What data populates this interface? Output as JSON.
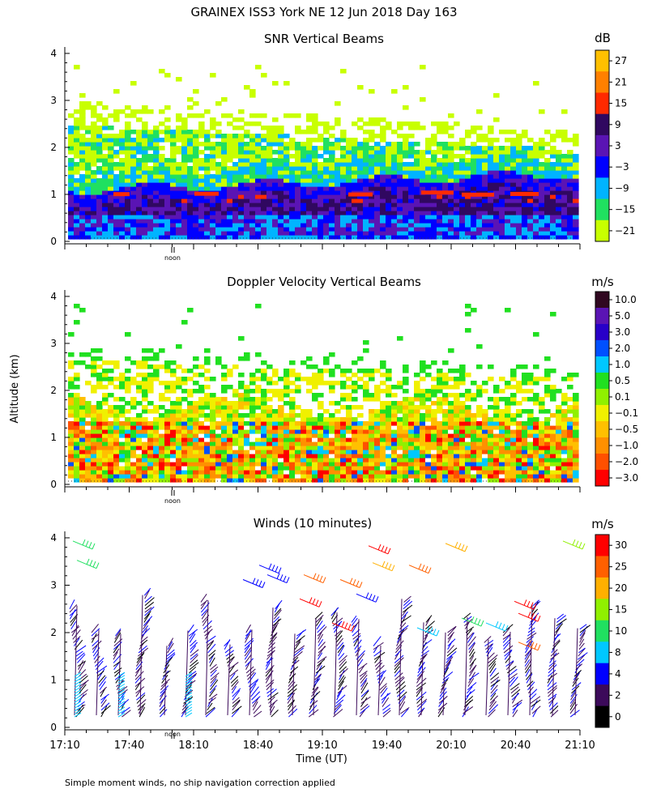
{
  "title": "GRAINEX ISS3 York NE  12 Jun 2018 Day 163",
  "ylabel": "Altitude (km)",
  "xlabel": "Time (UT)",
  "footnote": "Simple moment winds, no ship navigation correction applied",
  "noon_label": "noon",
  "chart_data": [
    {
      "type": "heatmap",
      "title": "SNR Vertical Beams",
      "colorbar_unit": "dB",
      "colorbar_ticks": [
        "27",
        "21",
        "15",
        "9",
        "3",
        "−3",
        "−9",
        "−15",
        "−21"
      ],
      "colorbar_colors": [
        "#ffc000",
        "#ff8000",
        "#ff2a00",
        "#300860",
        "#5a14b4",
        "#0000ff",
        "#00b4ff",
        "#20e060",
        "#c8ff00"
      ],
      "ylim": [
        0,
        4
      ],
      "yticks": [
        "0",
        "1",
        "2",
        "3",
        "4"
      ],
      "xlim": [
        "17:10",
        "21:10"
      ]
    },
    {
      "type": "heatmap",
      "title": "Doppler Velocity Vertical Beams",
      "colorbar_unit": "m/s",
      "colorbar_ticks": [
        "10.0",
        "5.0",
        "3.0",
        "2.0",
        "1.0",
        "0.5",
        "0.1",
        "−0.1",
        "−0.5",
        "−1.0",
        "−2.0",
        "−3.0"
      ],
      "colorbar_colors": [
        "#300820",
        "#5a14b4",
        "#2800c8",
        "#0050ff",
        "#00c8ff",
        "#20e020",
        "#90f000",
        "#f0f000",
        "#ffc000",
        "#ff9000",
        "#ff5000",
        "#ff0000"
      ],
      "ylim": [
        0,
        4
      ],
      "yticks": [
        "0",
        "1",
        "2",
        "3",
        "4"
      ],
      "xlim": [
        "17:10",
        "21:10"
      ]
    },
    {
      "type": "barbs",
      "title": "Winds (10 minutes)",
      "colorbar_unit": "m/s",
      "colorbar_ticks": [
        "30",
        "25",
        "20",
        "15",
        "10",
        "8",
        "4",
        "2",
        "0"
      ],
      "colorbar_colors": [
        "#ff0000",
        "#ff6000",
        "#ffb000",
        "#90f000",
        "#20e060",
        "#00c8ff",
        "#0000ff",
        "#3c0a5a",
        "#000000"
      ],
      "ylim": [
        0,
        4
      ],
      "yticks": [
        "0",
        "1",
        "2",
        "3",
        "4"
      ],
      "xticks": [
        "17:10",
        "17:40",
        "18:10",
        "18:40",
        "19:10",
        "19:40",
        "20:10",
        "20:40",
        "21:10"
      ]
    }
  ]
}
